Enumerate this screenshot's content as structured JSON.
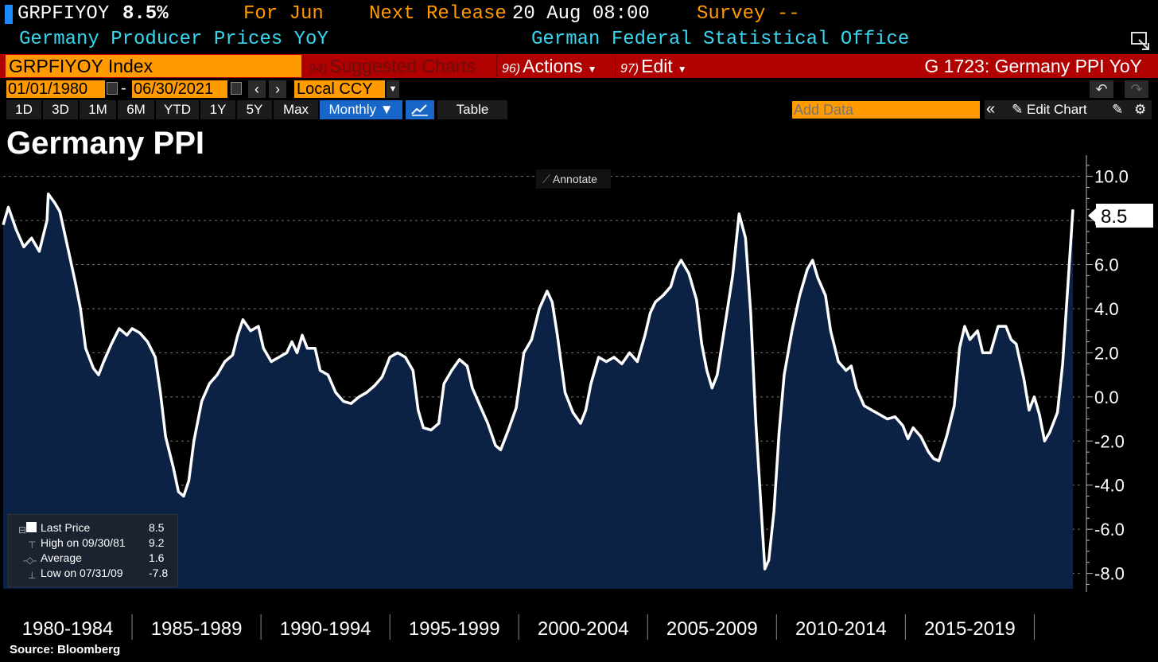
{
  "header": {
    "ticker": "GRPFIYOY",
    "last_value": "8.5%",
    "for_label": "For Jun",
    "next_release_label": "Next Release",
    "next_release_value": "20 Aug 08:00",
    "survey_label": "Survey --",
    "description": "Germany Producer Prices YoY",
    "source_org": "German Federal Statistical Office"
  },
  "command_bar": {
    "index": "GRPFIYOY Index",
    "suggested_num": "94)",
    "suggested_label": "Suggested Charts",
    "actions_num": "96)",
    "actions_label": "Actions",
    "edit_num": "97)",
    "edit_label": "Edit",
    "function_title": "G 1723: Germany PPI YoY"
  },
  "date_bar": {
    "start_date": "01/01/1980",
    "dash": "-",
    "end_date": "06/30/2021",
    "currency": "Local CCY"
  },
  "range_bar": {
    "ranges": [
      "1D",
      "3D",
      "1M",
      "6M",
      "YTD",
      "1Y",
      "5Y",
      "Max"
    ],
    "frequency": "Monthly ▼",
    "table_label": "Table",
    "add_data_placeholder": "Add Data",
    "edit_chart_label": "Edit Chart"
  },
  "icons": {
    "calendar": "calendar-icon",
    "back": "chevron-left-icon",
    "forward": "chevron-right-icon",
    "undo": "undo-icon",
    "redo": "redo-icon",
    "line_chart": "line-chart-icon",
    "collapse": "double-chevron-left-icon",
    "pencil": "pencil-icon",
    "settings": "gear-icon"
  },
  "colors": {
    "accent_orange": "#ff9a00",
    "command_red": "#b10000",
    "line": "#ffffff",
    "area_fill": "#0c2244",
    "header_cyan": "#38d6f0"
  },
  "annotate_label": "Annotate",
  "legend": {
    "items": [
      {
        "label": "Last Price",
        "value": "8.5"
      },
      {
        "label": "High on 09/30/81",
        "value": "9.2"
      },
      {
        "label": "Average",
        "value": "1.6"
      },
      {
        "label": "Low on 07/31/09",
        "value": "-7.8"
      }
    ]
  },
  "source": "Source: Bloomberg",
  "chart_data": {
    "type": "area",
    "title": "Germany PPI",
    "series_name": "Germany Producer Prices YoY",
    "last_value_label": "8.5",
    "x_ticks": [
      "1980-1984",
      "1985-1989",
      "1990-1994",
      "1995-1999",
      "2000-2004",
      "2005-2009",
      "2010-2014",
      "2015-2019"
    ],
    "x_range": [
      1980.0,
      2021.9
    ],
    "y_range": [
      -8.7,
      10.6
    ],
    "y_ticks": [
      "10.0",
      "8.0",
      "6.0",
      "4.0",
      "2.0",
      "0.0",
      "-2.0",
      "-4.0",
      "-6.0",
      "-8.0"
    ],
    "y_tick_values": [
      10,
      8,
      6,
      4,
      2,
      0,
      -2,
      -4,
      -6,
      -8
    ],
    "points": [
      [
        1980.0,
        7.8
      ],
      [
        1980.2,
        8.6
      ],
      [
        1980.5,
        7.6
      ],
      [
        1980.8,
        6.8
      ],
      [
        1981.1,
        7.2
      ],
      [
        1981.4,
        6.6
      ],
      [
        1981.7,
        8.0
      ],
      [
        1981.75,
        9.2
      ],
      [
        1982.0,
        8.8
      ],
      [
        1982.2,
        8.4
      ],
      [
        1982.5,
        6.8
      ],
      [
        1982.8,
        5.2
      ],
      [
        1983.0,
        4.0
      ],
      [
        1983.2,
        2.2
      ],
      [
        1983.5,
        1.3
      ],
      [
        1983.7,
        1.0
      ],
      [
        1983.9,
        1.6
      ],
      [
        1984.2,
        2.4
      ],
      [
        1984.5,
        3.1
      ],
      [
        1984.8,
        2.8
      ],
      [
        1985.0,
        3.1
      ],
      [
        1985.3,
        2.9
      ],
      [
        1985.6,
        2.5
      ],
      [
        1985.9,
        1.8
      ],
      [
        1986.1,
        0.2
      ],
      [
        1986.3,
        -1.8
      ],
      [
        1986.6,
        -3.2
      ],
      [
        1986.8,
        -4.3
      ],
      [
        1987.0,
        -4.5
      ],
      [
        1987.2,
        -3.8
      ],
      [
        1987.4,
        -2.0
      ],
      [
        1987.7,
        -0.2
      ],
      [
        1988.0,
        0.6
      ],
      [
        1988.3,
        1.0
      ],
      [
        1988.6,
        1.6
      ],
      [
        1988.9,
        1.9
      ],
      [
        1989.1,
        2.8
      ],
      [
        1989.3,
        3.5
      ],
      [
        1989.6,
        3.0
      ],
      [
        1989.9,
        3.2
      ],
      [
        1990.1,
        2.2
      ],
      [
        1990.4,
        1.6
      ],
      [
        1990.7,
        1.8
      ],
      [
        1991.0,
        2.0
      ],
      [
        1991.2,
        2.5
      ],
      [
        1991.4,
        2.0
      ],
      [
        1991.6,
        2.8
      ],
      [
        1991.8,
        2.2
      ],
      [
        1992.1,
        2.2
      ],
      [
        1992.3,
        1.2
      ],
      [
        1992.6,
        1.0
      ],
      [
        1992.9,
        0.2
      ],
      [
        1993.2,
        -0.2
      ],
      [
        1993.5,
        -0.3
      ],
      [
        1993.8,
        0.0
      ],
      [
        1994.1,
        0.2
      ],
      [
        1994.4,
        0.5
      ],
      [
        1994.7,
        0.9
      ],
      [
        1995.0,
        1.8
      ],
      [
        1995.3,
        2.0
      ],
      [
        1995.6,
        1.8
      ],
      [
        1995.9,
        1.2
      ],
      [
        1996.1,
        -0.6
      ],
      [
        1996.3,
        -1.4
      ],
      [
        1996.6,
        -1.5
      ],
      [
        1996.9,
        -1.2
      ],
      [
        1997.1,
        0.6
      ],
      [
        1997.4,
        1.2
      ],
      [
        1997.7,
        1.7
      ],
      [
        1998.0,
        1.4
      ],
      [
        1998.2,
        0.4
      ],
      [
        1998.5,
        -0.4
      ],
      [
        1998.8,
        -1.2
      ],
      [
        1999.1,
        -2.2
      ],
      [
        1999.3,
        -2.4
      ],
      [
        1999.6,
        -1.5
      ],
      [
        1999.9,
        -0.5
      ],
      [
        2000.2,
        2.0
      ],
      [
        2000.5,
        2.6
      ],
      [
        2000.8,
        4.0
      ],
      [
        2001.1,
        4.8
      ],
      [
        2001.3,
        4.3
      ],
      [
        2001.5,
        2.8
      ],
      [
        2001.8,
        0.2
      ],
      [
        2002.1,
        -0.7
      ],
      [
        2002.4,
        -1.2
      ],
      [
        2002.6,
        -0.6
      ],
      [
        2002.8,
        0.6
      ],
      [
        2003.1,
        1.8
      ],
      [
        2003.4,
        1.6
      ],
      [
        2003.7,
        1.8
      ],
      [
        2004.0,
        1.5
      ],
      [
        2004.3,
        2.0
      ],
      [
        2004.6,
        1.6
      ],
      [
        2004.9,
        2.8
      ],
      [
        2005.1,
        3.8
      ],
      [
        2005.3,
        4.3
      ],
      [
        2005.6,
        4.6
      ],
      [
        2005.9,
        5.0
      ],
      [
        2006.1,
        5.8
      ],
      [
        2006.3,
        6.2
      ],
      [
        2006.6,
        5.6
      ],
      [
        2006.9,
        4.4
      ],
      [
        2007.1,
        2.4
      ],
      [
        2007.3,
        1.2
      ],
      [
        2007.5,
        0.4
      ],
      [
        2007.7,
        1.0
      ],
      [
        2007.9,
        2.5
      ],
      [
        2008.1,
        4.0
      ],
      [
        2008.3,
        5.5
      ],
      [
        2008.55,
        8.3
      ],
      [
        2008.8,
        7.2
      ],
      [
        2009.0,
        3.8
      ],
      [
        2009.2,
        -1.2
      ],
      [
        2009.4,
        -5.0
      ],
      [
        2009.55,
        -7.8
      ],
      [
        2009.7,
        -7.4
      ],
      [
        2009.9,
        -5.2
      ],
      [
        2010.1,
        -1.6
      ],
      [
        2010.3,
        1.0
      ],
      [
        2010.6,
        3.0
      ],
      [
        2010.9,
        4.6
      ],
      [
        2011.2,
        5.8
      ],
      [
        2011.4,
        6.2
      ],
      [
        2011.6,
        5.4
      ],
      [
        2011.9,
        4.6
      ],
      [
        2012.1,
        3.0
      ],
      [
        2012.4,
        1.6
      ],
      [
        2012.7,
        1.2
      ],
      [
        2012.9,
        1.4
      ],
      [
        2013.1,
        0.4
      ],
      [
        2013.4,
        -0.4
      ],
      [
        2013.7,
        -0.6
      ],
      [
        2014.0,
        -0.8
      ],
      [
        2014.3,
        -1.0
      ],
      [
        2014.6,
        -0.9
      ],
      [
        2014.9,
        -1.3
      ],
      [
        2015.1,
        -1.9
      ],
      [
        2015.3,
        -1.4
      ],
      [
        2015.6,
        -1.8
      ],
      [
        2015.9,
        -2.5
      ],
      [
        2016.1,
        -2.8
      ],
      [
        2016.3,
        -2.9
      ],
      [
        2016.6,
        -1.8
      ],
      [
        2016.9,
        -0.4
      ],
      [
        2017.1,
        2.2
      ],
      [
        2017.3,
        3.2
      ],
      [
        2017.5,
        2.6
      ],
      [
        2017.8,
        3.0
      ],
      [
        2018.0,
        2.0
      ],
      [
        2018.3,
        2.0
      ],
      [
        2018.6,
        3.2
      ],
      [
        2018.9,
        3.2
      ],
      [
        2019.1,
        2.6
      ],
      [
        2019.3,
        2.4
      ],
      [
        2019.6,
        0.8
      ],
      [
        2019.8,
        -0.6
      ],
      [
        2020.0,
        0.0
      ],
      [
        2020.2,
        -0.8
      ],
      [
        2020.4,
        -2.0
      ],
      [
        2020.6,
        -1.6
      ],
      [
        2020.9,
        -0.7
      ],
      [
        2021.1,
        1.5
      ],
      [
        2021.3,
        5.0
      ],
      [
        2021.5,
        8.5
      ]
    ]
  }
}
